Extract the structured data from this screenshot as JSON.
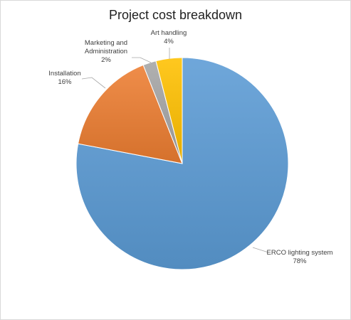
{
  "chart_data": {
    "type": "pie",
    "title": "Project cost breakdown",
    "slices": [
      {
        "label": "ERCO lighting system",
        "value": 78,
        "value_label": "78%",
        "color": "#5b9bd5"
      },
      {
        "label": "Installation",
        "value": 16,
        "value_label": "16%",
        "color": "#ed7d31"
      },
      {
        "label": "Marketing and Administration",
        "label_lines": [
          "Marketing and",
          "Administration"
        ],
        "value": 2,
        "value_label": "2%",
        "color": "#a5a5a5"
      },
      {
        "label": "Art handling",
        "value": 4,
        "value_label": "4%",
        "color": "#ffc000"
      }
    ],
    "start_angle_deg": 0,
    "direction": "clockwise",
    "data_labels": "outside with leader lines",
    "legend": "none"
  }
}
